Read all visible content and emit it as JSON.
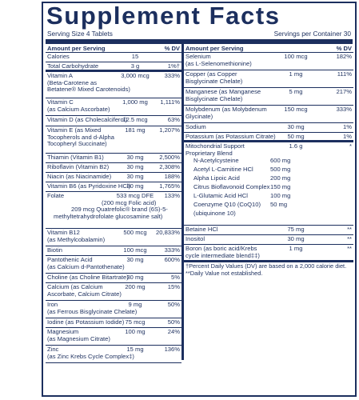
{
  "title": "Supplement Facts",
  "serving_size": "Serving Size 4 Tablets",
  "servings_per_container": "Servings per Container 30",
  "left_header": {
    "amount": "Amount per Serving",
    "dv": "% DV"
  },
  "right_header": {
    "amount": "Amount per Serving",
    "dv": "% DV"
  },
  "left_rows": [
    {
      "name": "Calories",
      "amount": "15",
      "dv": "",
      "h": 12
    },
    {
      "name": "Total Carbohydrate",
      "amount": "3 g",
      "dv": "1%†",
      "h": 12,
      "thick": true
    },
    {
      "name": "Vitamin A",
      "sub": [
        "(Beta-Carotene as",
        "Betatene® Mixed Carotenoids)"
      ],
      "amount": "3,000 mcg",
      "dv": "333%",
      "h": 33
    },
    {
      "name": "Vitamin C",
      "sub": [
        "(as Calcium Ascorbate)"
      ],
      "amount": "1,000 mg",
      "dv": "1,111%",
      "h": 22
    },
    {
      "name": "Vitamin D (as Cholecalciferol)",
      "amount": "12.5 mcg",
      "dv": "63%",
      "h": 13
    },
    {
      "name": "Vitamin E (as Mixed",
      "sub": [
        "Tocopherols and d-Alpha",
        "Tocopheryl Succinate)"
      ],
      "amount": "181 mg",
      "dv": "1,207%",
      "h": 34
    },
    {
      "name": "Thiamin (Vitamin B1)",
      "amount": "30 mg",
      "dv": "2,500%",
      "h": 12
    },
    {
      "name": "Riboflavin (Vitamin B2)",
      "amount": "30 mg",
      "dv": "2,308%",
      "h": 12
    },
    {
      "name": "Niacin (as Niacinamide)",
      "amount": "30 mg",
      "dv": "188%",
      "h": 12
    },
    {
      "name": "Vitamin B6 (as Pyridoxine HCl)",
      "amount": "30 mg",
      "dv": "1,765%",
      "h": 12
    },
    {
      "name": "Folate",
      "amount": "533 mcg DFE",
      "dv": "133%",
      "h": 46,
      "folate": true
    },
    {
      "name": "Vitamin B12",
      "sub": [
        "(as Methylcobalamin)"
      ],
      "amount": "500 mcg",
      "dv": "20,833%",
      "h": 22
    },
    {
      "name": "Biotin",
      "amount": "100 mcg",
      "dv": "333%",
      "h": 12
    },
    {
      "name": "Pantothenic Acid",
      "sub": [
        "(as Calcium d-Pantothenate)"
      ],
      "amount": "30 mg",
      "dv": "600%",
      "h": 22
    },
    {
      "name": "Choline (as Choline Bitartrate)",
      "amount": "30 mg",
      "dv": "5%",
      "h": 12
    },
    {
      "name": "Calcium (as Calcium",
      "sub": [
        "Ascorbate, Calcium Citrate)"
      ],
      "amount": "200 mg",
      "dv": "15%",
      "h": 22
    },
    {
      "name": "Iron",
      "sub": [
        "(as Ferrous Bisglycinate Chelate)"
      ],
      "amount": "9 mg",
      "dv": "50%",
      "h": 22
    },
    {
      "name": "Iodine (as Potassium Iodide)",
      "amount": "75 mcg",
      "dv": "50%",
      "h": 12
    },
    {
      "name": "Magnesium",
      "sub": [
        "(as Magnesium Citrate)"
      ],
      "amount": "100 mg",
      "dv": "24%",
      "h": 22
    },
    {
      "name": "Zinc",
      "sub": [
        "(as Zinc Krebs Cycle Complex‡)"
      ],
      "amount": "15 mg",
      "dv": "136%",
      "h": 22
    }
  ],
  "folate_lines": [
    "(200 mcg Folic acid)",
    "209 mcg Quatrefolic® brand (6S)-5-",
    "methyltetrahydrofolate glucosamine salt)"
  ],
  "right_rows": [
    {
      "name": "Selenium",
      "sub": [
        "(as L-Selenomethionine)"
      ],
      "amount": "100 mcg",
      "dv": "182%",
      "h": 22
    },
    {
      "name": "Copper (as Copper",
      "sub": [
        "Bisglycinate Chelate)"
      ],
      "amount": "1 mg",
      "dv": "111%",
      "h": 22
    },
    {
      "name": "Manganese (as Manganese",
      "sub": [
        "Bisglycinate Chelate)"
      ],
      "amount": "5 mg",
      "dv": "217%",
      "h": 22
    },
    {
      "name": "Molybdenum (as Molybdenum",
      "sub": [
        "Glycinate)"
      ],
      "amount": "150 mcg",
      "dv": "333%",
      "h": 22
    },
    {
      "name": "Sodium",
      "amount": "30 mg",
      "dv": "1%",
      "h": 12
    },
    {
      "name": "Potassium (as Potassium Citrate)",
      "amount": "50 mg",
      "dv": "1%",
      "h": 12,
      "thick": true
    },
    {
      "name": "Mitochondrial Support",
      "sub": [
        "Proprietary Blend"
      ],
      "amount": "1.6 g",
      "dv": "*",
      "h": 104,
      "blend": true
    },
    {
      "name": "Betaine HCl",
      "amount": "75 mg",
      "dv": "**",
      "h": 12
    },
    {
      "name": "Inositol",
      "amount": "30 mg",
      "dv": "**",
      "h": 12
    },
    {
      "name": "Boron (as boric acid/Krebs",
      "sub": [
        "cycle intermediate blend‡‡)"
      ],
      "amount": "1 mg",
      "dv": "**",
      "h": 22,
      "thick": true
    }
  ],
  "blend_components": [
    {
      "name": "N-Acetylcysteine",
      "amount": "600 mg"
    },
    {
      "name": "Acetyl L-Carnitine HCl",
      "amount": "500 mg"
    },
    {
      "name": "Alpha Lipoic Acid",
      "amount": "200 mg"
    },
    {
      "name": "Citrus Bioflavonoid Complex",
      "amount": "150 mg"
    },
    {
      "name": "L-Glutamic Acid HCl",
      "amount": "100 mg"
    },
    {
      "name": "Coenzyme Q10 (CoQ10)",
      "amount": "50 mg"
    },
    {
      "name": "(ubiquinone 10)",
      "amount": ""
    }
  ],
  "footnote": "†Percent Daily Values (DV) are based on a 2,000 calorie diet. **Daily Value not established."
}
